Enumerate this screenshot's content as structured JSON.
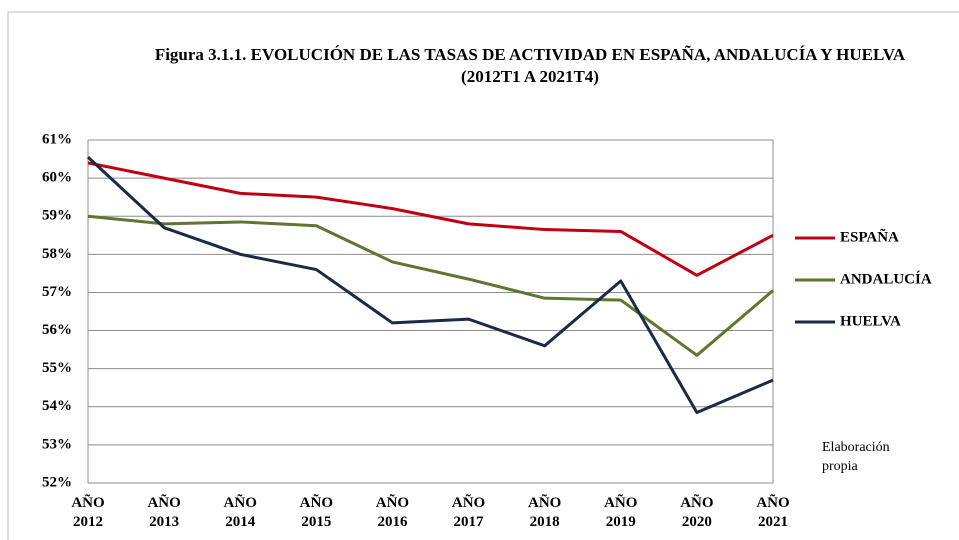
{
  "chart_data": {
    "type": "line",
    "title": "Figura 3.1.1. EVOLUCIÓN DE LAS TASAS DE ACTIVIDAD  EN ESPAÑA, ANDALUCÍA Y HUELVA  (2012T1 A 2021T4)",
    "categories": [
      "AÑO 2012",
      "AÑO 2013",
      "AÑO 2014",
      "AÑO 2015",
      "AÑO 2016",
      "AÑO 2017",
      "AÑO 2018",
      "AÑO 2019",
      "AÑO 2020",
      "AÑO 2021"
    ],
    "series": [
      {
        "name": "ESPAÑA",
        "color": "#c00010",
        "values": [
          60.4,
          60.0,
          59.6,
          59.5,
          59.2,
          58.8,
          58.65,
          58.6,
          57.45,
          58.5
        ]
      },
      {
        "name": "ANDALUCÍA",
        "color": "#5f7530",
        "values": [
          59.0,
          58.8,
          58.85,
          58.75,
          57.8,
          57.35,
          56.85,
          56.8,
          55.35,
          57.05
        ]
      },
      {
        "name": "HUELVA",
        "color": "#1b2a45",
        "values": [
          60.55,
          58.7,
          58.0,
          57.6,
          56.2,
          56.3,
          55.6,
          57.3,
          53.85,
          54.7
        ]
      }
    ],
    "ylim": [
      52,
      61
    ],
    "yticks": [
      {
        "value": 52,
        "label": "52%"
      },
      {
        "value": 53,
        "label": "53%"
      },
      {
        "value": 54,
        "label": "54%"
      },
      {
        "value": 55,
        "label": "55%"
      },
      {
        "value": 56,
        "label": "56%"
      },
      {
        "value": 57,
        "label": "57%"
      },
      {
        "value": 58,
        "label": "58%"
      },
      {
        "value": 59,
        "label": "59%"
      },
      {
        "value": 60,
        "label": "60%"
      },
      {
        "value": 61,
        "label": "61%"
      }
    ],
    "grid": true,
    "legend": "right",
    "note": "Elaboración propia"
  }
}
